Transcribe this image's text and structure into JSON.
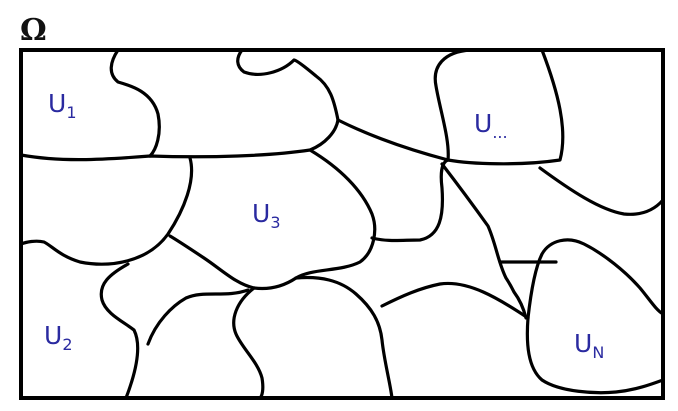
{
  "diagram": {
    "domain_symbol": "Ω",
    "colors": {
      "label": "#2a2aa0",
      "lines": "#000000"
    },
    "regions": [
      {
        "base": "U",
        "sub": "1"
      },
      {
        "base": "U",
        "sub": "2"
      },
      {
        "base": "U",
        "sub": "3"
      },
      {
        "base": "U",
        "sub": "..."
      },
      {
        "base": "U",
        "sub": "N"
      }
    ]
  }
}
